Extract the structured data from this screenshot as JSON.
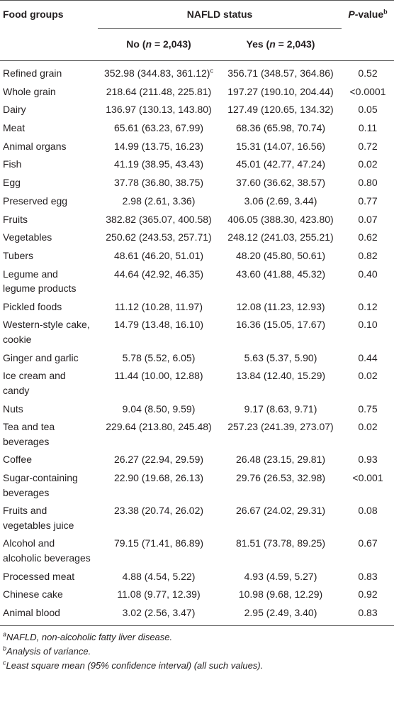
{
  "header": {
    "food_groups": "Food groups",
    "group": "NAFLD status",
    "p_value": [
      "P",
      "-value"
    ],
    "p_value_mark": "b",
    "no": [
      "No (",
      "n",
      " = 2,043)"
    ],
    "yes": [
      "Yes (",
      "n",
      " = 2,043)"
    ]
  },
  "table": {
    "first_row_mark": "c",
    "rows": [
      [
        "Refined grain",
        "352.98 (344.83, 361.12)",
        "356.71 (348.57, 364.86)",
        "0.52"
      ],
      [
        "Whole grain",
        "218.64 (211.48, 225.81)",
        "197.27 (190.10, 204.44)",
        "<0.0001"
      ],
      [
        "Dairy",
        "136.97 (130.13, 143.80)",
        "127.49 (120.65, 134.32)",
        "0.05"
      ],
      [
        "Meat",
        "65.61 (63.23, 67.99)",
        "68.36 (65.98, 70.74)",
        "0.11"
      ],
      [
        "Animal organs",
        "14.99 (13.75, 16.23)",
        "15.31 (14.07, 16.56)",
        "0.72"
      ],
      [
        "Fish",
        "41.19 (38.95, 43.43)",
        "45.01 (42.77, 47.24)",
        "0.02"
      ],
      [
        "Egg",
        "37.78 (36.80, 38.75)",
        "37.60 (36.62, 38.57)",
        "0.80"
      ],
      [
        "Preserved egg",
        "2.98 (2.61, 3.36)",
        "3.06 (2.69, 3.44)",
        "0.77"
      ],
      [
        "Fruits",
        "382.82 (365.07, 400.58)",
        "406.05 (388.30, 423.80)",
        "0.07"
      ],
      [
        "Vegetables",
        "250.62 (243.53, 257.71)",
        "248.12 (241.03, 255.21)",
        "0.62"
      ],
      [
        "Tubers",
        "48.61 (46.20, 51.01)",
        "48.20 (45.80, 50.61)",
        "0.82"
      ],
      [
        "Legume and legume products",
        "44.64 (42.92, 46.35)",
        "43.60 (41.88, 45.32)",
        "0.40"
      ],
      [
        "Pickled foods",
        "11.12 (10.28, 11.97)",
        "12.08 (11.23, 12.93)",
        "0.12"
      ],
      [
        "Western-style cake, cookie",
        "14.79 (13.48, 16.10)",
        "16.36 (15.05, 17.67)",
        "0.10"
      ],
      [
        "Ginger and garlic",
        "5.78 (5.52, 6.05)",
        "5.63 (5.37, 5.90)",
        "0.44"
      ],
      [
        "Ice cream and candy",
        "11.44 (10.00, 12.88)",
        "13.84 (12.40, 15.29)",
        "0.02"
      ],
      [
        "Nuts",
        "9.04 (8.50, 9.59)",
        "9.17 (8.63, 9.71)",
        "0.75"
      ],
      [
        "Tea and tea beverages",
        "229.64 (213.80, 245.48)",
        "257.23 (241.39, 273.07)",
        "0.02"
      ],
      [
        "Coffee",
        "26.27 (22.94, 29.59)",
        "26.48 (23.15, 29.81)",
        "0.93"
      ],
      [
        "Sugar-containing beverages",
        "22.90 (19.68, 26.13)",
        "29.76 (26.53, 32.98)",
        "<0.001"
      ],
      [
        "Fruits and vegetables juice",
        "23.38 (20.74, 26.02)",
        "26.67 (24.02, 29.31)",
        "0.08"
      ],
      [
        "Alcohol and alcoholic beverages",
        "79.15 (71.41, 86.89)",
        "81.51 (73.78, 89.25)",
        "0.67"
      ],
      [
        "Processed meat",
        "4.88 (4.54, 5.22)",
        "4.93 (4.59, 5.27)",
        "0.83"
      ],
      [
        "Chinese cake",
        "11.08 (9.77, 12.39)",
        "10.98 (9.68, 12.29)",
        "0.92"
      ],
      [
        "Animal blood",
        "3.02 (2.56, 3.47)",
        "2.95 (2.49, 3.40)",
        "0.83"
      ]
    ]
  },
  "footnotes": [
    {
      "mark": "a",
      "text": "NAFLD, non-alcoholic fatty liver disease."
    },
    {
      "mark": "b",
      "text": "Analysis of variance."
    },
    {
      "mark": "c",
      "text": "Least square mean (95% confidence interval) (all such values)."
    }
  ]
}
